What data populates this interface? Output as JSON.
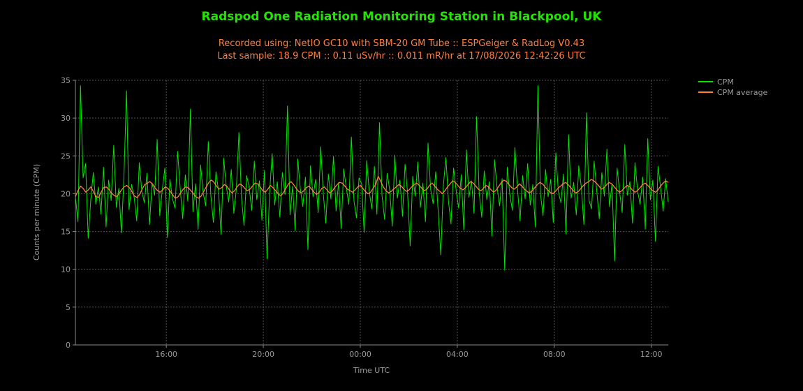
{
  "chart_data": {
    "type": "line",
    "title": "Radspod One Radiation Monitoring Station in Blackpool, UK",
    "subtitle_line1": "Recorded using: NetIO GC10 with SBM-20 GM Tube :: ESPGeiger & RadLog V0.43",
    "subtitle_line2": "Last sample: 18.9 CPM :: 0.11 uSv/hr :: 0.011 mR/hr at 17/08/2026 12:42:26 UTC",
    "xlabel": "Time UTC",
    "ylabel": "Counts per minute (CPM)",
    "x_ticks": [
      "16:00",
      "20:00",
      "00:00",
      "04:00",
      "08:00",
      "12:00"
    ],
    "y_ticks": [
      0,
      5,
      10,
      15,
      20,
      25,
      30,
      35
    ],
    "ylim": [
      0,
      35
    ],
    "x_range_hours": [
      "12:15",
      "12:42"
    ],
    "grid": true,
    "legend_position": "top-right",
    "series": [
      {
        "name": "CPM",
        "color": "#00e600",
        "x_start": "12:15",
        "x_step_minutes": 10,
        "values": [
          19.6,
          16.3,
          34.3,
          22.1,
          24.0,
          14.1,
          19.2,
          22.8,
          18.6,
          20.9,
          17.3,
          23.5,
          15.6,
          21.8,
          19.1,
          26.4,
          18.2,
          20.7,
          14.8,
          22.3,
          33.6,
          17.9,
          21.2,
          19.5,
          16.4,
          24.1,
          20.3,
          18.8,
          22.7,
          15.9,
          21.4,
          19.8,
          27.2,
          17.1,
          20.5,
          23.4,
          14.2,
          21.9,
          19.3,
          18.1,
          25.6,
          20.8,
          16.7,
          22.5,
          19.0,
          31.2,
          17.6,
          21.3,
          15.3,
          23.8,
          20.1,
          18.4,
          26.9,
          19.7,
          16.2,
          22.9,
          20.4,
          14.6,
          24.7,
          21.1,
          18.9,
          23.2,
          17.4,
          20.6,
          28.1,
          19.4,
          15.8,
          22.4,
          20.9,
          17.8,
          24.3,
          19.2,
          21.7,
          16.5,
          23.1,
          11.4,
          20.2,
          25.3,
          18.5,
          21.6,
          16.9,
          22.8,
          19.9,
          31.6,
          17.2,
          21.0,
          15.1,
          24.6,
          20.7,
          18.3,
          22.2,
          12.6,
          23.7,
          19.6,
          21.9,
          17.5,
          26.2,
          20.0,
          16.1,
          22.6,
          19.3,
          24.9,
          17.7,
          21.5,
          15.4,
          23.3,
          20.8,
          18.6,
          27.5,
          19.1,
          16.8,
          22.1,
          21.3,
          14.9,
          24.4,
          20.3,
          18.0,
          23.6,
          17.3,
          29.4,
          19.8,
          16.6,
          22.7,
          20.5,
          15.7,
          25.1,
          19.4,
          21.8,
          17.0,
          23.9,
          20.1,
          13.1,
          22.3,
          19.7,
          24.2,
          18.2,
          21.4,
          16.3,
          26.7,
          20.6,
          18.7,
          22.9,
          17.6,
          11.9,
          21.1,
          24.8,
          19.0,
          16.0,
          23.4,
          20.4,
          18.1,
          22.5,
          15.2,
          25.8,
          19.5,
          21.7,
          17.4,
          30.2,
          20.2,
          16.9,
          23.0,
          19.2,
          21.6,
          14.4,
          24.5,
          20.9,
          18.4,
          22.0,
          9.9,
          23.5,
          19.9,
          17.8,
          26.1,
          20.7,
          16.4,
          22.4,
          19.3,
          24.0,
          18.5,
          21.2,
          15.6,
          34.3,
          20.0,
          17.1,
          23.2,
          19.6,
          21.9,
          16.2,
          25.4,
          20.3,
          18.8,
          22.6,
          14.7,
          27.8,
          19.4,
          21.5,
          17.2,
          23.7,
          20.8,
          15.9,
          30.7,
          19.1,
          18.0,
          24.3,
          20.5,
          16.7,
          22.8,
          19.7,
          25.9,
          18.3,
          21.3,
          11.1,
          23.4,
          20.1,
          17.5,
          26.5,
          19.8,
          21.6,
          16.1,
          24.1,
          20.4,
          18.6,
          22.2,
          15.3,
          27.3,
          19.2,
          21.8,
          13.7,
          23.6,
          20.9,
          17.7,
          22.0,
          18.9
        ]
      },
      {
        "name": "CPM average",
        "color": "#ff7f3f",
        "x_start": "12:15",
        "x_step_minutes": 10,
        "values": [
          19.6,
          20.4,
          21.0,
          20.7,
          20.2,
          20.5,
          20.9,
          20.3,
          19.6,
          19.5,
          20.2,
          20.8,
          20.9,
          20.6,
          20.1,
          19.8,
          19.6,
          20.0,
          20.5,
          20.9,
          21.1,
          20.8,
          20.3,
          19.7,
          19.5,
          19.9,
          20.6,
          21.2,
          21.4,
          21.6,
          21.3,
          20.8,
          20.4,
          20.2,
          20.5,
          20.9,
          20.7,
          20.3,
          19.8,
          19.4,
          19.6,
          20.1,
          20.6,
          20.9,
          20.8,
          20.4,
          20.0,
          19.6,
          19.4,
          19.7,
          20.3,
          20.9,
          21.5,
          21.8,
          21.5,
          21.0,
          20.6,
          20.8,
          21.2,
          21.0,
          20.5,
          20.1,
          20.4,
          20.9,
          21.3,
          21.1,
          20.7,
          20.4,
          20.6,
          21.0,
          21.4,
          21.3,
          20.9,
          20.4,
          20.2,
          20.6,
          21.1,
          20.8,
          20.4,
          20.0,
          19.7,
          20.1,
          20.7,
          21.3,
          21.6,
          21.2,
          20.7,
          20.3,
          20.1,
          20.4,
          20.8,
          21.0,
          20.6,
          20.2,
          19.9,
          20.2,
          20.7,
          20.9,
          20.5,
          20.1,
          20.3,
          20.8,
          21.2,
          21.5,
          21.4,
          21.0,
          20.6,
          20.4,
          20.2,
          20.5,
          20.9,
          21.1,
          20.7,
          20.3,
          20.0,
          20.2,
          20.7,
          21.2,
          22.3,
          21.6,
          20.9,
          20.4,
          20.1,
          20.3,
          20.6,
          20.9,
          21.2,
          21.0,
          20.6,
          20.3,
          20.5,
          20.9,
          21.2,
          21.4,
          21.1,
          20.7,
          20.4,
          20.6,
          21.1,
          21.4,
          21.0,
          20.6,
          20.3,
          20.0,
          20.4,
          20.9,
          21.3,
          21.7,
          21.5,
          21.1,
          20.7,
          20.5,
          20.8,
          21.2,
          21.6,
          21.4,
          21.0,
          20.6,
          20.4,
          20.7,
          21.1,
          20.9,
          20.5,
          20.2,
          20.5,
          21.0,
          21.5,
          21.8,
          21.6,
          21.2,
          20.8,
          20.6,
          20.9,
          21.3,
          21.0,
          20.6,
          20.3,
          20.1,
          20.4,
          20.8,
          21.2,
          21.5,
          21.3,
          20.9,
          20.5,
          20.2,
          20.0,
          20.3,
          20.7,
          21.0,
          21.3,
          21.5,
          21.2,
          20.8,
          20.4,
          20.1,
          20.3,
          20.7,
          21.1,
          21.4,
          21.6,
          21.9,
          21.7,
          21.4,
          21.0,
          20.6,
          20.8,
          21.2,
          21.5,
          21.3,
          20.9,
          20.5,
          20.2,
          20.4,
          20.8,
          21.1,
          20.9,
          20.5,
          20.2,
          20.4,
          20.8,
          21.2,
          21.4,
          21.1,
          20.7,
          20.4,
          20.2,
          20.5,
          21.0,
          21.4,
          21.7,
          21.5
        ]
      }
    ]
  }
}
